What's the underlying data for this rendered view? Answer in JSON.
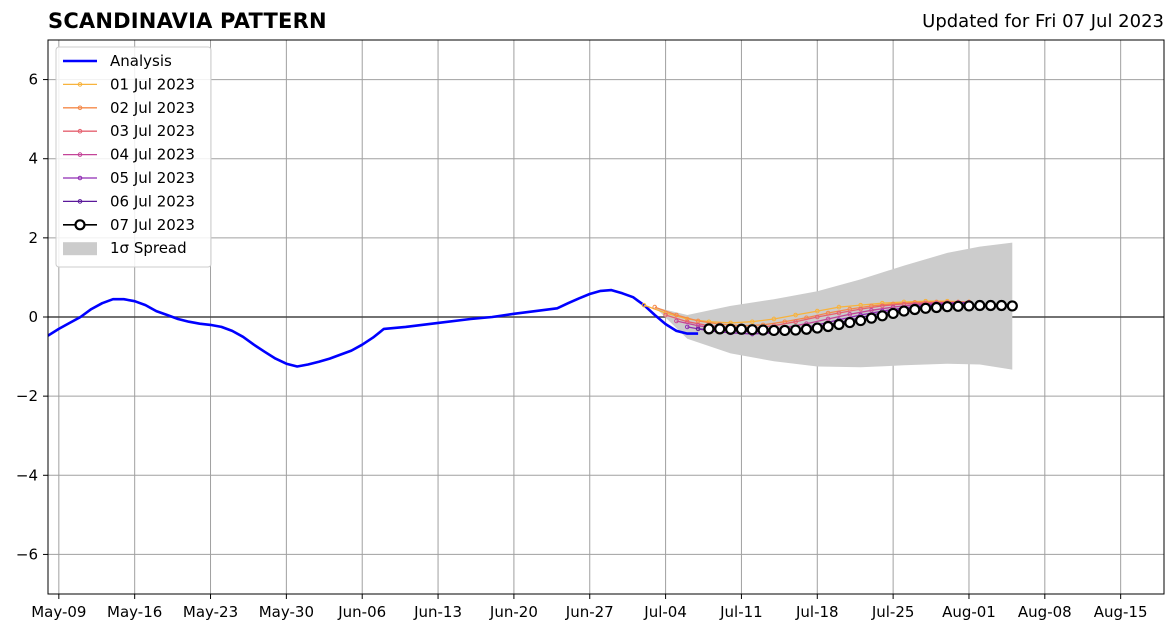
{
  "title": "SCANDINAVIA PATTERN",
  "updated": "Updated for Fri 07 Jul 2023",
  "chart_data": {
    "type": "line",
    "title": "SCANDINAVIA PATTERN",
    "xlabel": "",
    "ylabel": "",
    "xlim": [
      "2023-05-08",
      "2023-08-19"
    ],
    "ylim": [
      -7,
      7
    ],
    "grid": true,
    "legend_position": "top-left",
    "x_ticks": [
      "May-09",
      "May-16",
      "May-23",
      "May-30",
      "Jun-06",
      "Jun-13",
      "Jun-20",
      "Jun-27",
      "Jul-04",
      "Jul-11",
      "Jul-18",
      "Jul-25",
      "Aug-01",
      "Aug-08",
      "Aug-15"
    ],
    "x_tick_dates": [
      "2023-05-09",
      "2023-05-16",
      "2023-05-23",
      "2023-05-30",
      "2023-06-06",
      "2023-06-13",
      "2023-06-20",
      "2023-06-27",
      "2023-07-04",
      "2023-07-11",
      "2023-07-18",
      "2023-07-25",
      "2023-08-01",
      "2023-08-08",
      "2023-08-15"
    ],
    "y_ticks": [
      "6",
      "4",
      "2",
      "0",
      "−2",
      "−4",
      "−6"
    ],
    "y_tick_values": [
      6,
      4,
      2,
      0,
      -2,
      -4,
      -6
    ],
    "analysis": {
      "name": "Analysis",
      "color": "#0000ff",
      "x": [
        "2023-05-08",
        "2023-05-09",
        "2023-05-10",
        "2023-05-11",
        "2023-05-12",
        "2023-05-13",
        "2023-05-14",
        "2023-05-15",
        "2023-05-16",
        "2023-05-17",
        "2023-05-18",
        "2023-05-19",
        "2023-05-20",
        "2023-05-21",
        "2023-05-22",
        "2023-05-23",
        "2023-05-24",
        "2023-05-25",
        "2023-05-26",
        "2023-05-27",
        "2023-05-28",
        "2023-05-29",
        "2023-05-30",
        "2023-05-31",
        "2023-06-01",
        "2023-06-02",
        "2023-06-03",
        "2023-06-04",
        "2023-06-05",
        "2023-06-06",
        "2023-06-07",
        "2023-06-08",
        "2023-06-10",
        "2023-06-13",
        "2023-06-16",
        "2023-06-18",
        "2023-06-20",
        "2023-06-22",
        "2023-06-24",
        "2023-06-25",
        "2023-06-26",
        "2023-06-27",
        "2023-06-28",
        "2023-06-29",
        "2023-06-30",
        "2023-07-01",
        "2023-07-02",
        "2023-07-03",
        "2023-07-04",
        "2023-07-05",
        "2023-07-06",
        "2023-07-07"
      ],
      "y": [
        -0.47,
        -0.3,
        -0.15,
        0.0,
        0.2,
        0.35,
        0.45,
        0.45,
        0.4,
        0.3,
        0.15,
        0.05,
        -0.05,
        -0.12,
        -0.17,
        -0.2,
        -0.25,
        -0.35,
        -0.5,
        -0.7,
        -0.88,
        -1.05,
        -1.18,
        -1.25,
        -1.2,
        -1.13,
        -1.05,
        -0.95,
        -0.85,
        -0.7,
        -0.52,
        -0.3,
        -0.25,
        -0.15,
        -0.05,
        0.0,
        0.08,
        0.15,
        0.22,
        0.35,
        0.47,
        0.58,
        0.66,
        0.68,
        0.6,
        0.5,
        0.3,
        0.05,
        -0.18,
        -0.35,
        -0.42,
        -0.42
      ]
    },
    "spread": {
      "name": "1σ Spread",
      "color": "#cccccc",
      "x": [
        "2023-07-03",
        "2023-07-06",
        "2023-07-10",
        "2023-07-14",
        "2023-07-18",
        "2023-07-22",
        "2023-07-26",
        "2023-07-30",
        "2023-08-02",
        "2023-08-05"
      ],
      "upper": [
        0.25,
        0.05,
        0.28,
        0.45,
        0.65,
        0.95,
        1.3,
        1.62,
        1.78,
        1.88
      ],
      "lower": [
        0.25,
        -0.55,
        -0.92,
        -1.12,
        -1.25,
        -1.27,
        -1.22,
        -1.18,
        -1.2,
        -1.33
      ]
    },
    "series": [
      {
        "name": "01 Jul 2023",
        "color": "#f8b33c",
        "marker": "dot",
        "x": [
          "2023-07-02",
          "2023-07-04",
          "2023-07-06",
          "2023-07-08",
          "2023-07-10",
          "2023-07-12",
          "2023-07-14",
          "2023-07-16",
          "2023-07-18",
          "2023-07-20",
          "2023-07-22",
          "2023-07-24",
          "2023-07-26",
          "2023-07-28",
          "2023-07-30",
          "2023-08-01"
        ],
        "y": [
          0.3,
          0.1,
          -0.05,
          -0.12,
          -0.15,
          -0.12,
          -0.05,
          0.05,
          0.15,
          0.25,
          0.3,
          0.35,
          0.38,
          0.4,
          0.4,
          0.38
        ]
      },
      {
        "name": "02 Jul 2023",
        "color": "#f4894a",
        "marker": "dot",
        "x": [
          "2023-07-03",
          "2023-07-05",
          "2023-07-07",
          "2023-07-09",
          "2023-07-11",
          "2023-07-13",
          "2023-07-15",
          "2023-07-17",
          "2023-07-19",
          "2023-07-21",
          "2023-07-23",
          "2023-07-25",
          "2023-07-27",
          "2023-07-29",
          "2023-07-31",
          "2023-08-01"
        ],
        "y": [
          0.25,
          0.05,
          -0.1,
          -0.18,
          -0.22,
          -0.2,
          -0.12,
          -0.02,
          0.1,
          0.2,
          0.28,
          0.33,
          0.37,
          0.38,
          0.38,
          0.38
        ]
      },
      {
        "name": "03 Jul 2023",
        "color": "#e56270",
        "marker": "dot",
        "x": [
          "2023-07-04",
          "2023-07-06",
          "2023-07-08",
          "2023-07-10",
          "2023-07-12",
          "2023-07-14",
          "2023-07-16",
          "2023-07-18",
          "2023-07-20",
          "2023-07-22",
          "2023-07-24",
          "2023-07-26",
          "2023-07-28",
          "2023-07-30",
          "2023-08-01"
        ],
        "y": [
          0.05,
          -0.12,
          -0.22,
          -0.27,
          -0.28,
          -0.22,
          -0.12,
          0.0,
          0.1,
          0.2,
          0.28,
          0.33,
          0.36,
          0.37,
          0.37
        ]
      },
      {
        "name": "04 Jul 2023",
        "color": "#c44498",
        "marker": "dot",
        "x": [
          "2023-07-05",
          "2023-07-07",
          "2023-07-09",
          "2023-07-11",
          "2023-07-13",
          "2023-07-15",
          "2023-07-17",
          "2023-07-19",
          "2023-07-21",
          "2023-07-23",
          "2023-07-25",
          "2023-07-27",
          "2023-07-29",
          "2023-07-31",
          "2023-08-01"
        ],
        "y": [
          -0.1,
          -0.22,
          -0.3,
          -0.35,
          -0.33,
          -0.27,
          -0.17,
          -0.05,
          0.07,
          0.17,
          0.25,
          0.31,
          0.35,
          0.37,
          0.37
        ]
      },
      {
        "name": "05 Jul 2023",
        "color": "#8f2bb3",
        "marker": "dot",
        "x": [
          "2023-07-06",
          "2023-07-08",
          "2023-07-10",
          "2023-07-12",
          "2023-07-14",
          "2023-07-16",
          "2023-07-18",
          "2023-07-20",
          "2023-07-22",
          "2023-07-24",
          "2023-07-26",
          "2023-07-28",
          "2023-07-30",
          "2023-08-01"
        ],
        "y": [
          -0.25,
          -0.35,
          -0.4,
          -0.43,
          -0.4,
          -0.32,
          -0.2,
          -0.07,
          0.05,
          0.15,
          0.23,
          0.3,
          0.34,
          0.36
        ]
      },
      {
        "name": "06 Jul 2023",
        "color": "#5a189a",
        "marker": "dot",
        "x": [
          "2023-07-07",
          "2023-07-09",
          "2023-07-11",
          "2023-07-13",
          "2023-07-15",
          "2023-07-17",
          "2023-07-19",
          "2023-07-21",
          "2023-07-23",
          "2023-07-25",
          "2023-07-27",
          "2023-07-29",
          "2023-07-31",
          "2023-08-01"
        ],
        "y": [
          -0.3,
          -0.33,
          -0.36,
          -0.38,
          -0.36,
          -0.3,
          -0.2,
          -0.08,
          0.05,
          0.15,
          0.24,
          0.3,
          0.34,
          0.36
        ]
      },
      {
        "name": "07 Jul 2023",
        "color": "#000000",
        "marker": "circle",
        "x": [
          "2023-07-08",
          "2023-07-09",
          "2023-07-10",
          "2023-07-11",
          "2023-07-12",
          "2023-07-13",
          "2023-07-14",
          "2023-07-15",
          "2023-07-16",
          "2023-07-17",
          "2023-07-18",
          "2023-07-19",
          "2023-07-20",
          "2023-07-21",
          "2023-07-22",
          "2023-07-23",
          "2023-07-24",
          "2023-07-25",
          "2023-07-26",
          "2023-07-27",
          "2023-07-28",
          "2023-07-29",
          "2023-07-30",
          "2023-07-31",
          "2023-08-01",
          "2023-08-02",
          "2023-08-03",
          "2023-08-04",
          "2023-08-05"
        ],
        "y": [
          -0.3,
          -0.3,
          -0.31,
          -0.31,
          -0.32,
          -0.33,
          -0.34,
          -0.34,
          -0.33,
          -0.31,
          -0.28,
          -0.24,
          -0.19,
          -0.14,
          -0.09,
          -0.03,
          0.03,
          0.09,
          0.15,
          0.19,
          0.22,
          0.24,
          0.26,
          0.27,
          0.28,
          0.29,
          0.29,
          0.29,
          0.28
        ]
      }
    ]
  }
}
